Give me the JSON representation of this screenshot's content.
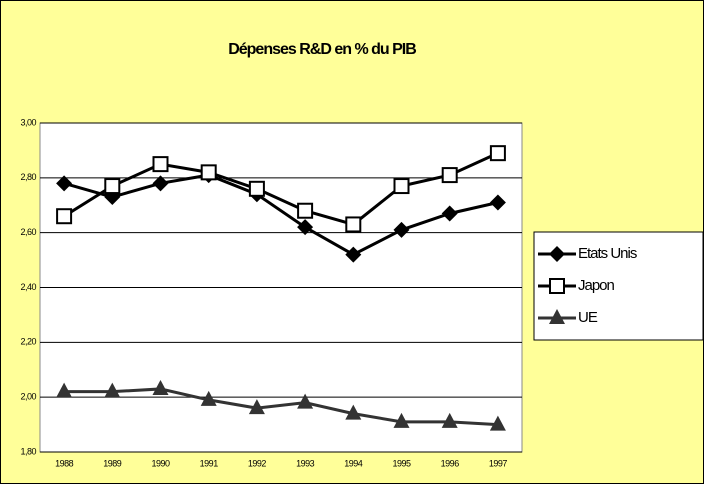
{
  "chart_data": {
    "type": "line",
    "title": "Dépenses R&D en % du PIB",
    "categories": [
      "1988",
      "1989",
      "1990",
      "1991",
      "1992",
      "1993",
      "1994",
      "1995",
      "1996",
      "1997"
    ],
    "series": [
      {
        "name": "Etats Unis",
        "color": "#000000",
        "marker": "diamond",
        "values": [
          2.78,
          2.73,
          2.78,
          2.81,
          2.74,
          2.62,
          2.52,
          2.61,
          2.67,
          2.71
        ]
      },
      {
        "name": "Japon",
        "color": "#000000",
        "marker": "square",
        "values": [
          2.66,
          2.77,
          2.85,
          2.82,
          2.76,
          2.68,
          2.63,
          2.77,
          2.81,
          2.89
        ]
      },
      {
        "name": "UE",
        "color": "#333333",
        "marker": "triangle",
        "values": [
          2.02,
          2.02,
          2.03,
          1.99,
          1.96,
          1.98,
          1.94,
          1.91,
          1.91,
          1.9
        ]
      }
    ],
    "ylim": [
      1.8,
      3.0
    ],
    "yticks": [
      {
        "value": 1.8,
        "label": "1,80"
      },
      {
        "value": 2.0,
        "label": "2,00"
      },
      {
        "value": 2.2,
        "label": "2,20"
      },
      {
        "value": 2.4,
        "label": "2,40"
      },
      {
        "value": 2.6,
        "label": "2,60"
      },
      {
        "value": 2.8,
        "label": "2,80"
      },
      {
        "value": 3.0,
        "label": "3,00"
      }
    ],
    "grid": true,
    "legend": "right"
  }
}
